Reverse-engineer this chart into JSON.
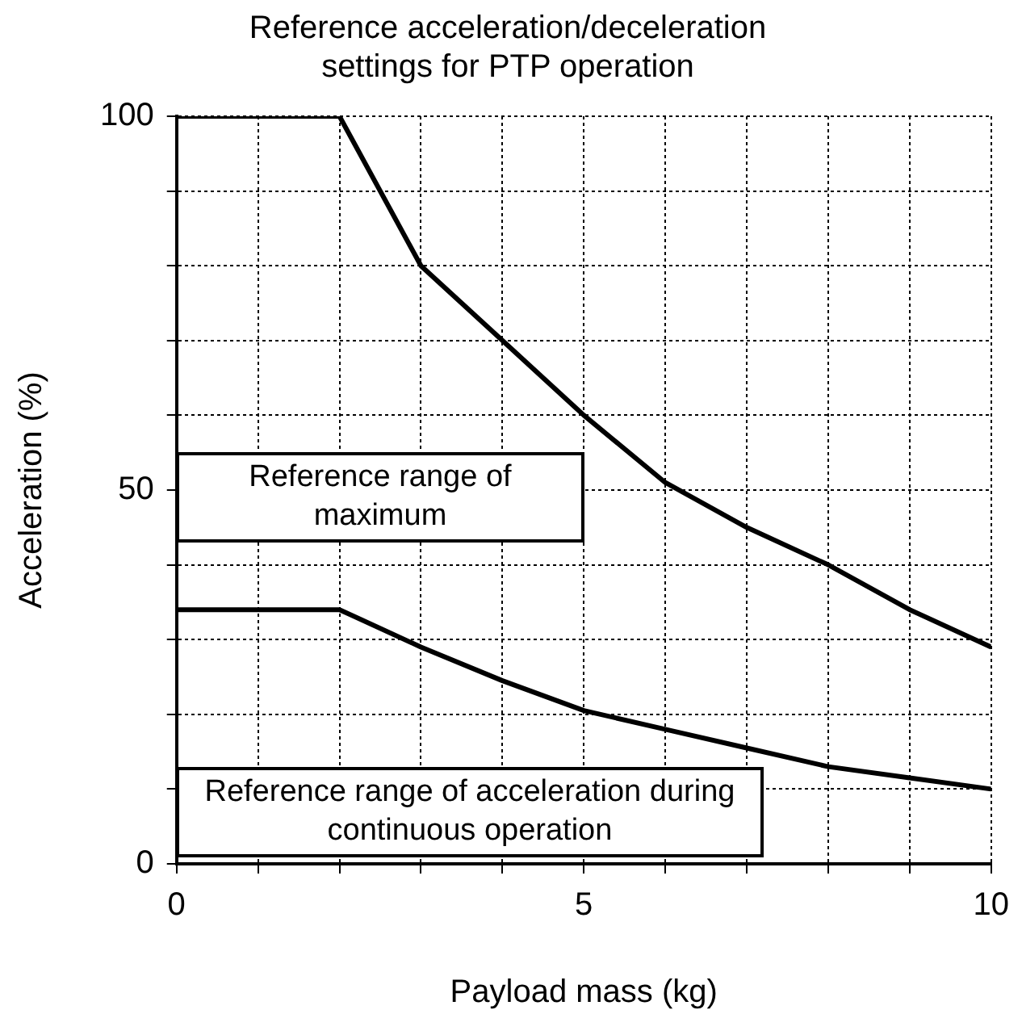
{
  "chart_data": {
    "type": "line",
    "title": "Reference acceleration/deceleration settings for PTP operation",
    "xlabel": "Payload mass (kg)",
    "ylabel": "Acceleration (%)",
    "x": [
      0,
      2,
      3,
      4,
      5,
      6,
      7,
      8,
      9,
      10
    ],
    "series": [
      {
        "name": "Reference range of maximum",
        "color": "#000000",
        "values": [
          100,
          100,
          80,
          70,
          60,
          51,
          45,
          40,
          34,
          29
        ]
      },
      {
        "name": "Reference range of acceleration during continuous operation",
        "color": "#000000",
        "values": [
          34,
          34,
          29,
          24.5,
          20.5,
          18,
          15.5,
          13,
          11.5,
          10
        ]
      }
    ],
    "xlim": [
      0,
      10
    ],
    "ylim": [
      0,
      100
    ],
    "xticks": [
      0,
      {
        "value": 1,
        "label": null
      },
      {
        "value": 2,
        "label": null
      },
      {
        "value": 3,
        "label": null
      },
      {
        "value": 4,
        "label": null
      },
      5,
      {
        "value": 6,
        "label": null
      },
      {
        "value": 7,
        "label": null
      },
      {
        "value": 8,
        "label": null
      },
      {
        "value": 9,
        "label": null
      },
      10
    ],
    "yticks": [
      0,
      {
        "value": 10,
        "label": null
      },
      {
        "value": 20,
        "label": null
      },
      {
        "value": 30,
        "label": null
      },
      {
        "value": 40,
        "label": null
      },
      50,
      {
        "value": 60,
        "label": null
      },
      {
        "value": 70,
        "label": null
      },
      {
        "value": 80,
        "label": null
      },
      {
        "value": 90,
        "label": null
      },
      100
    ],
    "grid": true,
    "legend": false,
    "marker": "none",
    "line_style": "solid"
  }
}
